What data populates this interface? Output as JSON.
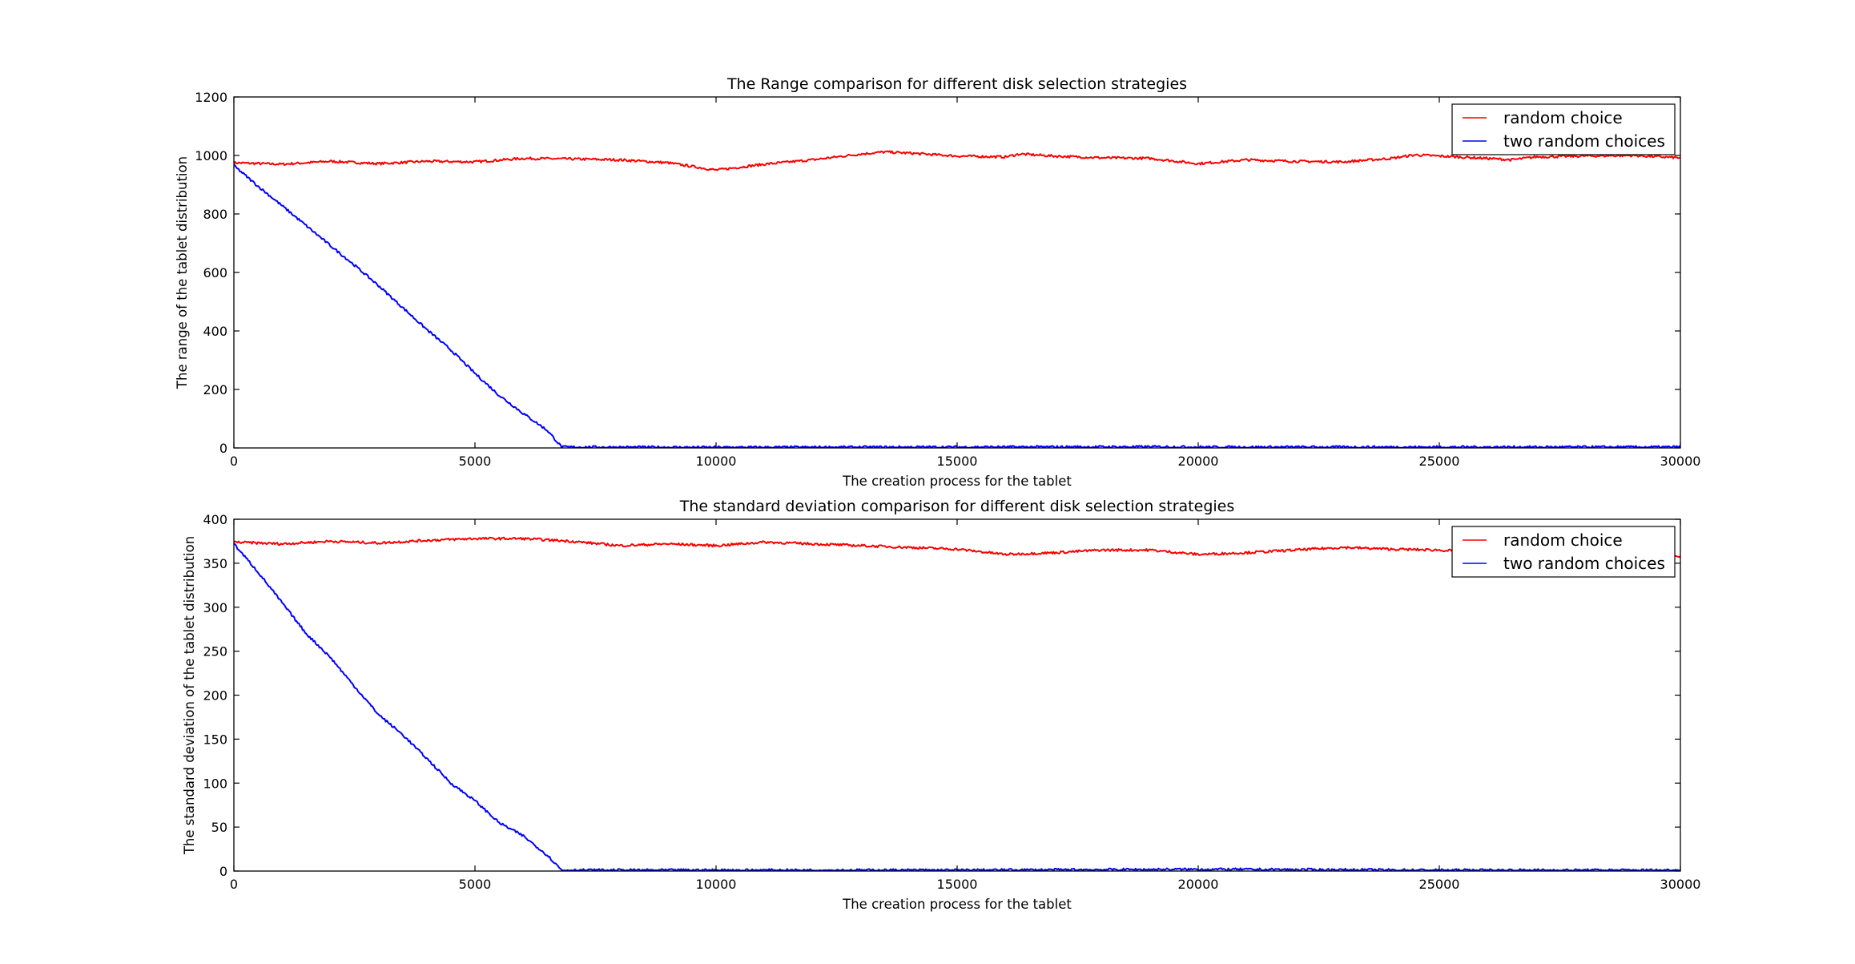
{
  "chart_data": [
    {
      "type": "line",
      "title": "The Range comparison for different disk selection strategies",
      "xlabel": "The creation process for the tablet",
      "ylabel": "The range of the tablet distribution",
      "xlim": [
        0,
        30000
      ],
      "ylim": [
        0,
        1200
      ],
      "xticks": [
        0,
        5000,
        10000,
        15000,
        20000,
        25000,
        30000
      ],
      "yticks": [
        0,
        200,
        400,
        600,
        800,
        1000,
        1200
      ],
      "grid": false,
      "legend_position": "top-right",
      "series": [
        {
          "name": "random choice",
          "color": "#ff0000",
          "x": [
            0,
            1000,
            2000,
            3000,
            4000,
            5000,
            6000,
            7000,
            8000,
            9000,
            10000,
            11000,
            12000,
            13000,
            13500,
            14000,
            15000,
            16000,
            16300,
            17000,
            18000,
            19000,
            20000,
            21000,
            22000,
            23000,
            24000,
            24500,
            25000,
            26000,
            26500,
            27000,
            28000,
            29000,
            30000
          ],
          "values": [
            975,
            970,
            980,
            972,
            980,
            978,
            990,
            988,
            985,
            975,
            950,
            970,
            985,
            1005,
            1012,
            1008,
            998,
            995,
            1005,
            998,
            992,
            990,
            972,
            985,
            980,
            978,
            990,
            1002,
            998,
            990,
            985,
            995,
            998,
            1000,
            992
          ]
        },
        {
          "name": "two random choices",
          "color": "#0000ff",
          "x": [
            0,
            500,
            1000,
            1500,
            2000,
            2500,
            3000,
            3500,
            4000,
            4500,
            5000,
            5500,
            6000,
            6500,
            6800,
            7000,
            10000,
            15000,
            19500,
            20000,
            25000,
            30000
          ],
          "values": [
            965,
            895,
            828,
            760,
            692,
            625,
            555,
            480,
            405,
            335,
            255,
            180,
            118,
            60,
            3,
            3,
            2,
            3,
            4,
            3,
            3,
            3
          ]
        }
      ]
    },
    {
      "type": "line",
      "title": "The standard deviation comparison for different disk selection strategies",
      "xlabel": "The creation process for the tablet",
      "ylabel": "The standard deviation of the tablet distribution",
      "xlim": [
        0,
        30000
      ],
      "ylim": [
        0,
        400
      ],
      "xticks": [
        0,
        5000,
        10000,
        15000,
        20000,
        25000,
        30000
      ],
      "yticks": [
        0,
        50,
        100,
        150,
        200,
        250,
        300,
        350,
        400
      ],
      "grid": false,
      "legend_position": "top-right",
      "series": [
        {
          "name": "random choice",
          "color": "#ff0000",
          "x": [
            0,
            1000,
            2000,
            3000,
            4000,
            5000,
            6000,
            7000,
            8000,
            9000,
            10000,
            11000,
            12000,
            13000,
            14000,
            15000,
            16000,
            17000,
            18000,
            19000,
            20000,
            21000,
            22000,
            23000,
            24000,
            25000,
            26000,
            27000,
            28000,
            29000,
            30000
          ],
          "values": [
            374,
            372,
            375,
            373,
            376,
            378,
            378,
            375,
            370,
            372,
            370,
            374,
            372,
            370,
            368,
            366,
            360,
            362,
            365,
            365,
            360,
            362,
            365,
            368,
            366,
            365,
            362,
            362,
            362,
            360,
            358
          ]
        },
        {
          "name": "two random choices",
          "color": "#0000ff",
          "x": [
            0,
            500,
            1000,
            1500,
            2000,
            2500,
            3000,
            3500,
            4000,
            4500,
            5000,
            5500,
            6000,
            6500,
            6800,
            7000,
            10000,
            15000,
            20000,
            25000,
            30000
          ],
          "values": [
            372,
            340,
            305,
            270,
            243,
            210,
            178,
            155,
            128,
            100,
            80,
            55,
            40,
            18,
            1,
            1,
            1,
            1,
            2,
            1,
            1
          ]
        }
      ]
    }
  ]
}
